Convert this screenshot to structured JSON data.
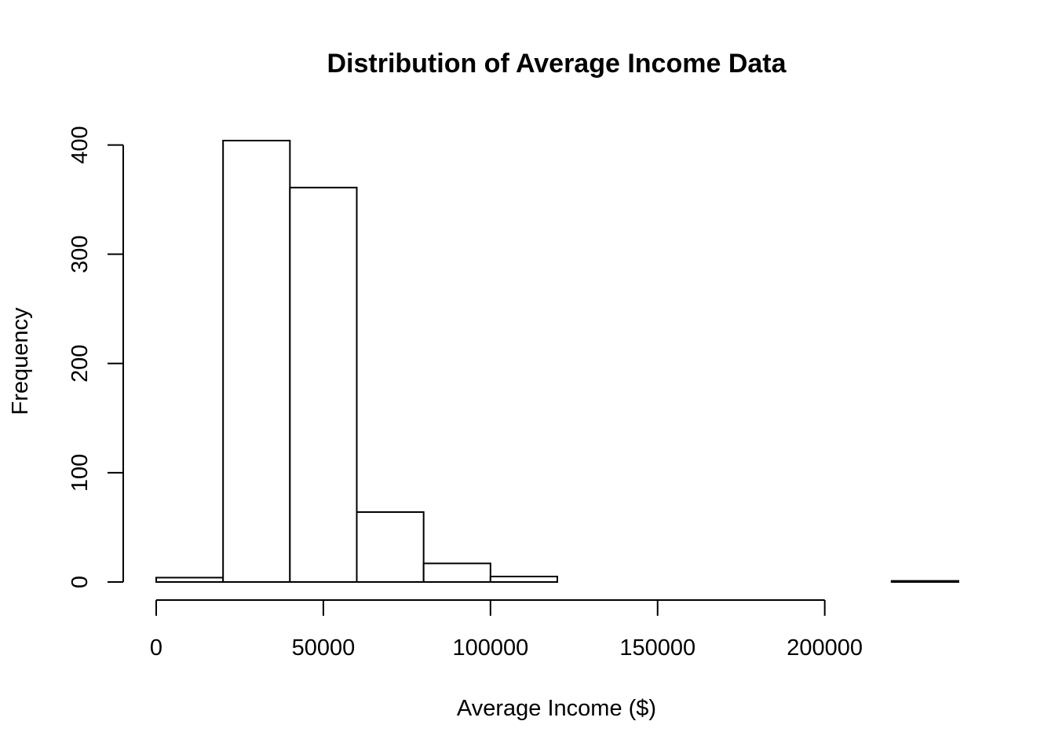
{
  "chart_data": {
    "type": "bar",
    "title": "Distribution of Average Income Data",
    "xlabel": "Average Income ($)",
    "ylabel": "Frequency",
    "bins": [
      {
        "start": 0,
        "end": 20000,
        "count": 4
      },
      {
        "start": 20000,
        "end": 40000,
        "count": 404
      },
      {
        "start": 40000,
        "end": 60000,
        "count": 361
      },
      {
        "start": 60000,
        "end": 80000,
        "count": 64
      },
      {
        "start": 80000,
        "end": 100000,
        "count": 17
      },
      {
        "start": 100000,
        "end": 120000,
        "count": 5
      },
      {
        "start": 120000,
        "end": 140000,
        "count": 0
      },
      {
        "start": 140000,
        "end": 160000,
        "count": 0
      },
      {
        "start": 160000,
        "end": 180000,
        "count": 0
      },
      {
        "start": 180000,
        "end": 200000,
        "count": 0
      },
      {
        "start": 200000,
        "end": 220000,
        "count": 0
      },
      {
        "start": 220000,
        "end": 240000,
        "count": 1
      }
    ],
    "xticks": [
      0,
      50000,
      100000,
      150000,
      200000
    ],
    "yticks": [
      0,
      100,
      200,
      300,
      400
    ],
    "xlim": [
      0,
      240000
    ],
    "ylim": [
      0,
      404
    ],
    "grid": false
  }
}
